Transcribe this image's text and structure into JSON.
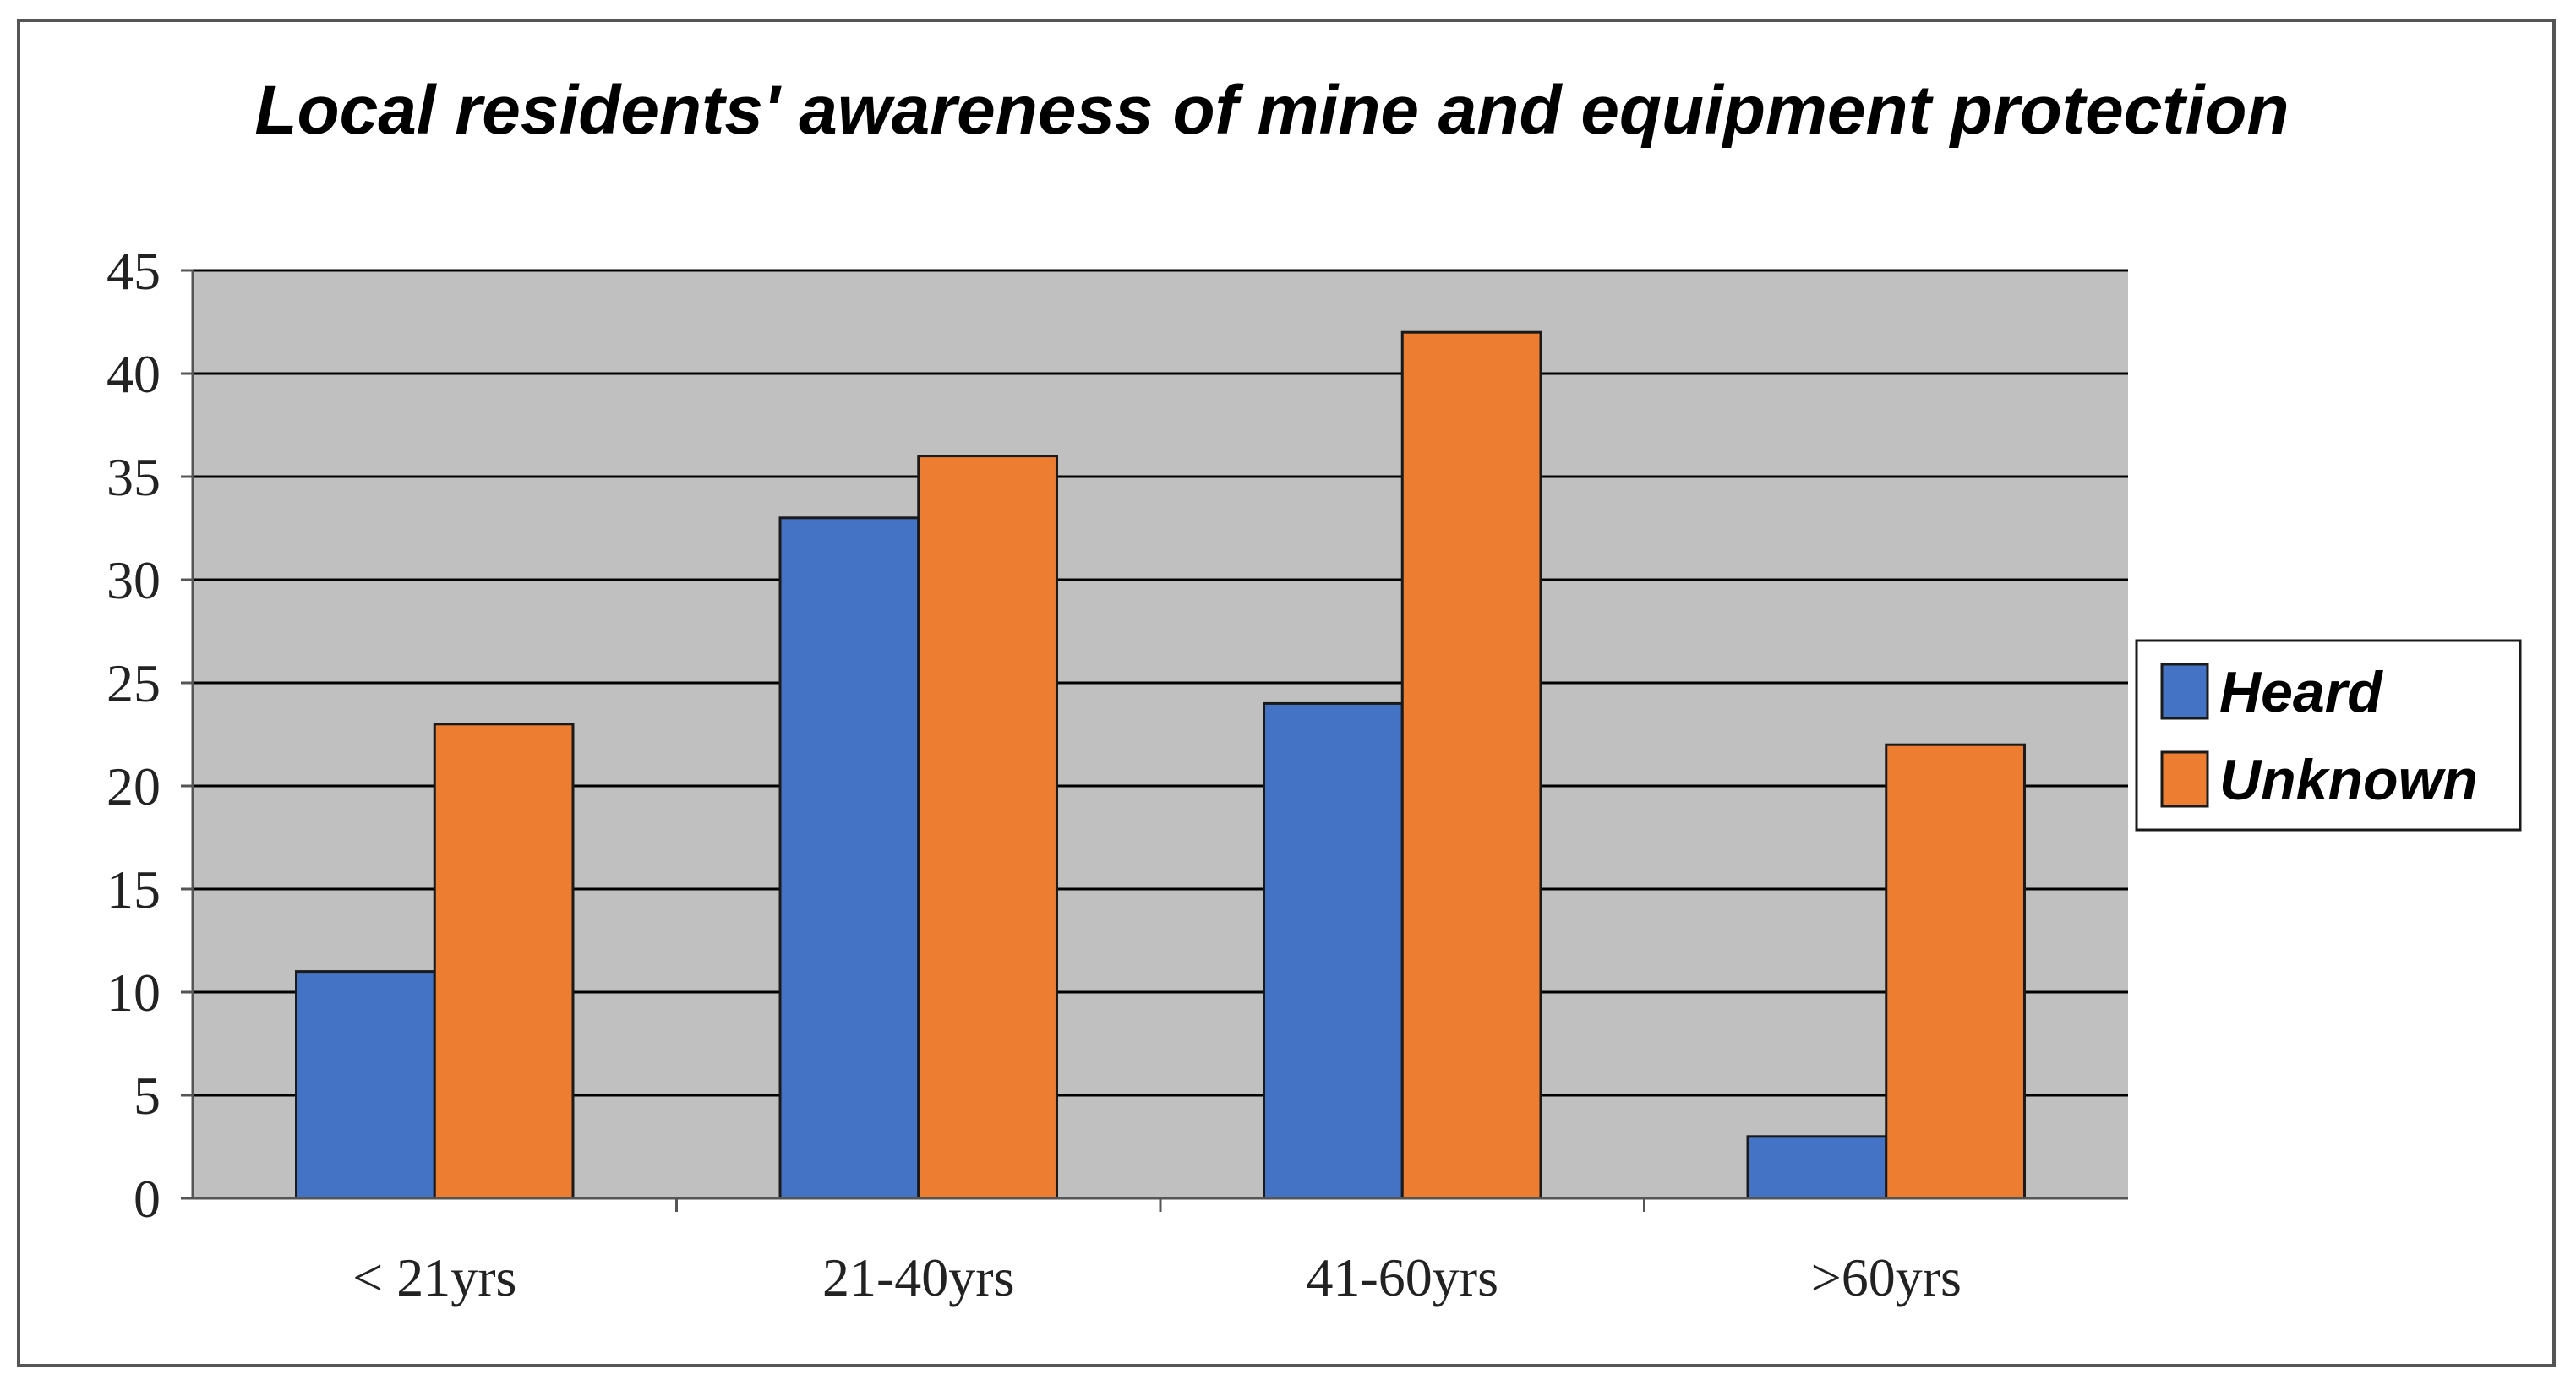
{
  "chart_data": {
    "type": "bar",
    "title": "Local residents' awareness of mine and equipment protection",
    "xlabel": "",
    "ylabel": "",
    "categories": [
      "< 21yrs",
      "21-40yrs",
      "41-60yrs",
      ">60yrs"
    ],
    "series": [
      {
        "name": "Heard",
        "values": [
          11,
          33,
          24,
          3
        ],
        "color": "#4472C4"
      },
      {
        "name": "Unknown",
        "values": [
          23,
          36,
          42,
          22
        ],
        "color": "#ED7D31"
      }
    ],
    "ylim": [
      0,
      45
    ],
    "yticks": [
      0,
      5,
      10,
      15,
      20,
      25,
      30,
      35,
      40,
      45
    ],
    "grid": true,
    "legend_position": "right",
    "plot_background": "#C0C0C0"
  }
}
